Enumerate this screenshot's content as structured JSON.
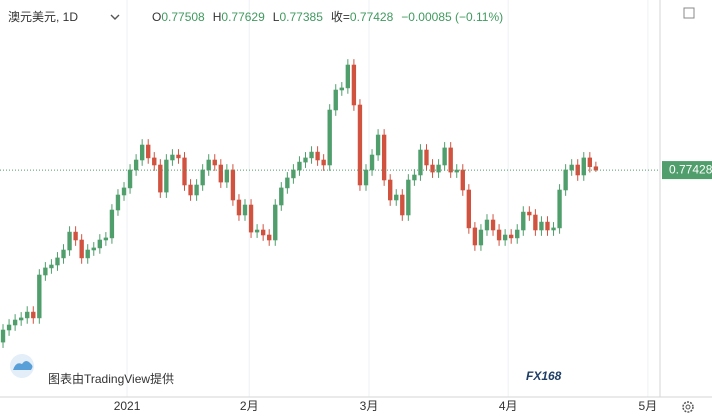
{
  "chart_data": {
    "type": "candlestick",
    "title": "澳元美元, 1D",
    "ohlc_labels": [
      "O",
      "H",
      "L",
      "收="
    ],
    "change": "−0.00085 (−0.11%)",
    "up_color": "#4f9e6b",
    "down_color": "#d0523f",
    "grid": true,
    "last_price_line": true,
    "ylim": [
      0.7203,
      0.8139
    ],
    "xlim": [
      -0.5,
      108.6
    ],
    "xticks": [
      {
        "value": 20.5,
        "label": "2021"
      },
      {
        "value": 40.7,
        "label": "2月"
      },
      {
        "value": 60.5,
        "label": "3月"
      },
      {
        "value": 83.5,
        "label": "4月"
      },
      {
        "value": 106.6,
        "label": "5月"
      }
    ],
    "series": [
      {
        "open": [
          0.733,
          0.7359,
          0.7371,
          0.7383,
          0.7388,
          0.7402,
          0.7388,
          0.7491,
          0.7508,
          0.7515,
          0.7532,
          0.7551,
          0.7594,
          0.7575,
          0.7532,
          0.7551,
          0.7556,
          0.7575,
          0.758,
          0.7647,
          0.7683,
          0.77,
          0.7743,
          0.7767,
          0.7803,
          0.7772,
          0.7755,
          0.769,
          0.7767,
          0.7779,
          0.7772,
          0.7707,
          0.7683,
          0.7707,
          0.7743,
          0.7767,
          0.7755,
          0.7714,
          0.7743,
          0.7671,
          0.7635,
          0.7659,
          0.7594,
          0.7599,
          0.7587,
          0.7575,
          0.7659,
          0.77,
          0.7724,
          0.7743,
          0.7762,
          0.7772,
          0.7786,
          0.7767,
          0.7755,
          0.7887,
          0.7935,
          0.794,
          0.7995,
          0.7899,
          0.7707,
          0.7743,
          0.7779,
          0.7827,
          0.7719,
          0.7671,
          0.7683,
          0.7635,
          0.7719,
          0.7731,
          0.7791,
          0.7755,
          0.7738,
          0.7755,
          0.7796,
          0.7738,
          0.7743,
          0.7695,
          0.7604,
          0.7563,
          0.7599,
          0.7623,
          0.7599,
          0.7575,
          0.7587,
          0.758,
          0.7599,
          0.7642,
          0.7635,
          0.7599,
          0.7618,
          0.7599,
          0.7604,
          0.7695,
          0.7743,
          0.7755,
          0.7731,
          0.7772,
          0.77508
        ],
        "high": [
          0.7373,
          0.7385,
          0.7397,
          0.7402,
          0.7416,
          0.7416,
          0.7505,
          0.7522,
          0.7529,
          0.7546,
          0.7565,
          0.7608,
          0.7608,
          0.7589,
          0.7565,
          0.757,
          0.7589,
          0.7594,
          0.7661,
          0.7697,
          0.7714,
          0.7757,
          0.7781,
          0.7817,
          0.7817,
          0.7786,
          0.7769,
          0.7781,
          0.7793,
          0.7793,
          0.7786,
          0.7721,
          0.7721,
          0.7757,
          0.7781,
          0.7781,
          0.7769,
          0.7757,
          0.7757,
          0.7685,
          0.7673,
          0.7673,
          0.7613,
          0.7613,
          0.7601,
          0.7673,
          0.7714,
          0.7738,
          0.7757,
          0.7776,
          0.7786,
          0.78,
          0.78,
          0.7781,
          0.7901,
          0.7949,
          0.7954,
          0.8009,
          0.8009,
          0.7913,
          0.7757,
          0.7793,
          0.7841,
          0.7841,
          0.7733,
          0.7697,
          0.7697,
          0.7733,
          0.7745,
          0.7805,
          0.7805,
          0.7769,
          0.7769,
          0.781,
          0.781,
          0.7757,
          0.7757,
          0.7709,
          0.7618,
          0.7613,
          0.7637,
          0.7637,
          0.7613,
          0.7601,
          0.7601,
          0.7613,
          0.7656,
          0.7656,
          0.7649,
          0.7632,
          0.7632,
          0.7618,
          0.7709,
          0.7757,
          0.7769,
          0.7769,
          0.7786,
          0.7786,
          0.77629
        ],
        "low": [
          0.7316,
          0.7345,
          0.7357,
          0.7369,
          0.7374,
          0.7374,
          0.7374,
          0.7477,
          0.7494,
          0.7501,
          0.7518,
          0.7537,
          0.7561,
          0.7518,
          0.7518,
          0.7537,
          0.7542,
          0.7561,
          0.7566,
          0.7633,
          0.7669,
          0.7686,
          0.7729,
          0.7753,
          0.7758,
          0.7741,
          0.7676,
          0.7676,
          0.7753,
          0.7758,
          0.7693,
          0.7669,
          0.7669,
          0.7693,
          0.7729,
          0.7741,
          0.77,
          0.77,
          0.7657,
          0.7621,
          0.7621,
          0.758,
          0.758,
          0.7573,
          0.7561,
          0.7561,
          0.7645,
          0.7686,
          0.771,
          0.7729,
          0.7748,
          0.7758,
          0.7753,
          0.7741,
          0.7741,
          0.7873,
          0.7921,
          0.7926,
          0.7885,
          0.7693,
          0.7693,
          0.7729,
          0.7765,
          0.7705,
          0.7657,
          0.7657,
          0.7621,
          0.7621,
          0.7705,
          0.7717,
          0.7741,
          0.7724,
          0.7724,
          0.7741,
          0.7724,
          0.7724,
          0.7681,
          0.759,
          0.7549,
          0.7549,
          0.7585,
          0.7585,
          0.7561,
          0.7561,
          0.7566,
          0.7566,
          0.7585,
          0.7621,
          0.7585,
          0.7585,
          0.7585,
          0.7585,
          0.759,
          0.7681,
          0.7729,
          0.7717,
          0.7717,
          0.7737,
          0.77385
        ],
        "close": [
          0.7359,
          0.7371,
          0.7383,
          0.7388,
          0.7402,
          0.7388,
          0.7491,
          0.7508,
          0.7515,
          0.7532,
          0.7551,
          0.7594,
          0.7575,
          0.7532,
          0.7551,
          0.7556,
          0.7575,
          0.758,
          0.7647,
          0.7683,
          0.77,
          0.7743,
          0.7767,
          0.7803,
          0.7772,
          0.7755,
          0.769,
          0.7767,
          0.7779,
          0.7772,
          0.7707,
          0.7683,
          0.7707,
          0.7743,
          0.7767,
          0.7755,
          0.7714,
          0.7743,
          0.7671,
          0.7635,
          0.7659,
          0.7594,
          0.7599,
          0.7587,
          0.7575,
          0.7659,
          0.77,
          0.7724,
          0.7743,
          0.7762,
          0.7772,
          0.7786,
          0.7767,
          0.7755,
          0.7887,
          0.7935,
          0.794,
          0.7995,
          0.7899,
          0.7707,
          0.7743,
          0.7779,
          0.7827,
          0.7719,
          0.7671,
          0.7683,
          0.7635,
          0.7719,
          0.7731,
          0.7791,
          0.7755,
          0.7738,
          0.7755,
          0.7796,
          0.7738,
          0.7743,
          0.7695,
          0.7604,
          0.7563,
          0.7599,
          0.7623,
          0.7599,
          0.7575,
          0.7587,
          0.758,
          0.7599,
          0.7642,
          0.7635,
          0.7599,
          0.7618,
          0.7599,
          0.7604,
          0.7695,
          0.7743,
          0.7755,
          0.7731,
          0.7772,
          0.7751,
          0.77428
        ]
      }
    ]
  },
  "footer": {
    "attribution": "图表由TradingView提供",
    "logo": "FX168"
  }
}
